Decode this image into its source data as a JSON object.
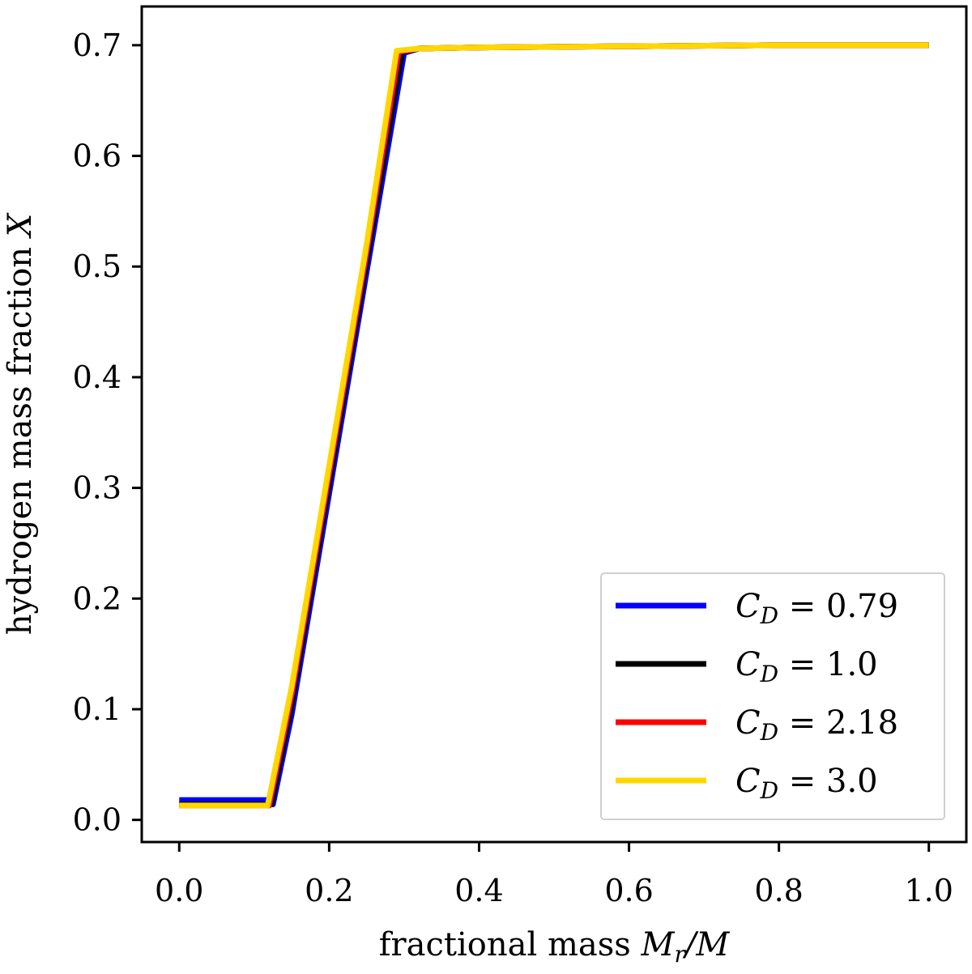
{
  "chart_data": {
    "type": "line",
    "xlabel": "fractional mass M_r/M",
    "ylabel": "hydrogen mass fraction X",
    "xlim": [
      -0.05,
      1.05
    ],
    "ylim": [
      -0.02,
      0.735
    ],
    "x_ticks": [
      0.0,
      0.2,
      0.4,
      0.6,
      0.8,
      1.0
    ],
    "x_tick_labels": [
      "0.0",
      "0.2",
      "0.4",
      "0.6",
      "0.8",
      "1.0"
    ],
    "y_ticks": [
      0.0,
      0.1,
      0.2,
      0.3,
      0.4,
      0.5,
      0.6,
      0.7
    ],
    "y_tick_labels": [
      "0.0",
      "0.1",
      "0.2",
      "0.3",
      "0.4",
      "0.5",
      "0.6",
      "0.7"
    ],
    "grid": false,
    "legend_position": "lower-right",
    "series": [
      {
        "name": "C_D = 0.79",
        "color": "#0000ff",
        "x": [
          0.0,
          0.118,
          0.125,
          0.15,
          0.2,
          0.25,
          0.3,
          0.32,
          0.4,
          0.6,
          0.8,
          1.0
        ],
        "y": [
          0.018,
          0.018,
          0.014,
          0.095,
          0.295,
          0.495,
          0.693,
          0.697,
          0.698,
          0.699,
          0.7,
          0.7
        ]
      },
      {
        "name": "C_D = 1.0",
        "color": "#000000",
        "x": [
          0.0,
          0.115,
          0.123,
          0.15,
          0.2,
          0.25,
          0.297,
          0.32,
          0.4,
          0.6,
          0.8,
          1.0
        ],
        "y": [
          0.014,
          0.014,
          0.014,
          0.105,
          0.305,
          0.505,
          0.694,
          0.697,
          0.698,
          0.699,
          0.7,
          0.7
        ]
      },
      {
        "name": "C_D = 2.18",
        "color": "#ff0000",
        "x": [
          0.0,
          0.113,
          0.12,
          0.15,
          0.2,
          0.25,
          0.293,
          0.32,
          0.4,
          0.6,
          0.8,
          1.0
        ],
        "y": [
          0.013,
          0.013,
          0.013,
          0.113,
          0.313,
          0.513,
          0.694,
          0.697,
          0.698,
          0.699,
          0.7,
          0.7
        ]
      },
      {
        "name": "C_D = 3.0",
        "color": "#ffd700",
        "x": [
          0.0,
          0.111,
          0.118,
          0.15,
          0.2,
          0.25,
          0.29,
          0.32,
          0.4,
          0.6,
          0.8,
          1.0
        ],
        "y": [
          0.013,
          0.013,
          0.013,
          0.12,
          0.32,
          0.52,
          0.695,
          0.697,
          0.698,
          0.699,
          0.7,
          0.7
        ]
      }
    ],
    "legend": [
      {
        "sym": "C",
        "sub": "D",
        "rest": " = 0.79"
      },
      {
        "sym": "C",
        "sub": "D",
        "rest": " = 1.0"
      },
      {
        "sym": "C",
        "sub": "D",
        "rest": " = 2.18"
      },
      {
        "sym": "C",
        "sub": "D",
        "rest": " = 3.0"
      }
    ],
    "xlabel_parts": {
      "prefix": "fractional mass ",
      "sym": "M",
      "sub": "r",
      "tail": "/M"
    },
    "ylabel_parts": {
      "prefix": "hydrogen mass fraction ",
      "sym": "X"
    }
  }
}
